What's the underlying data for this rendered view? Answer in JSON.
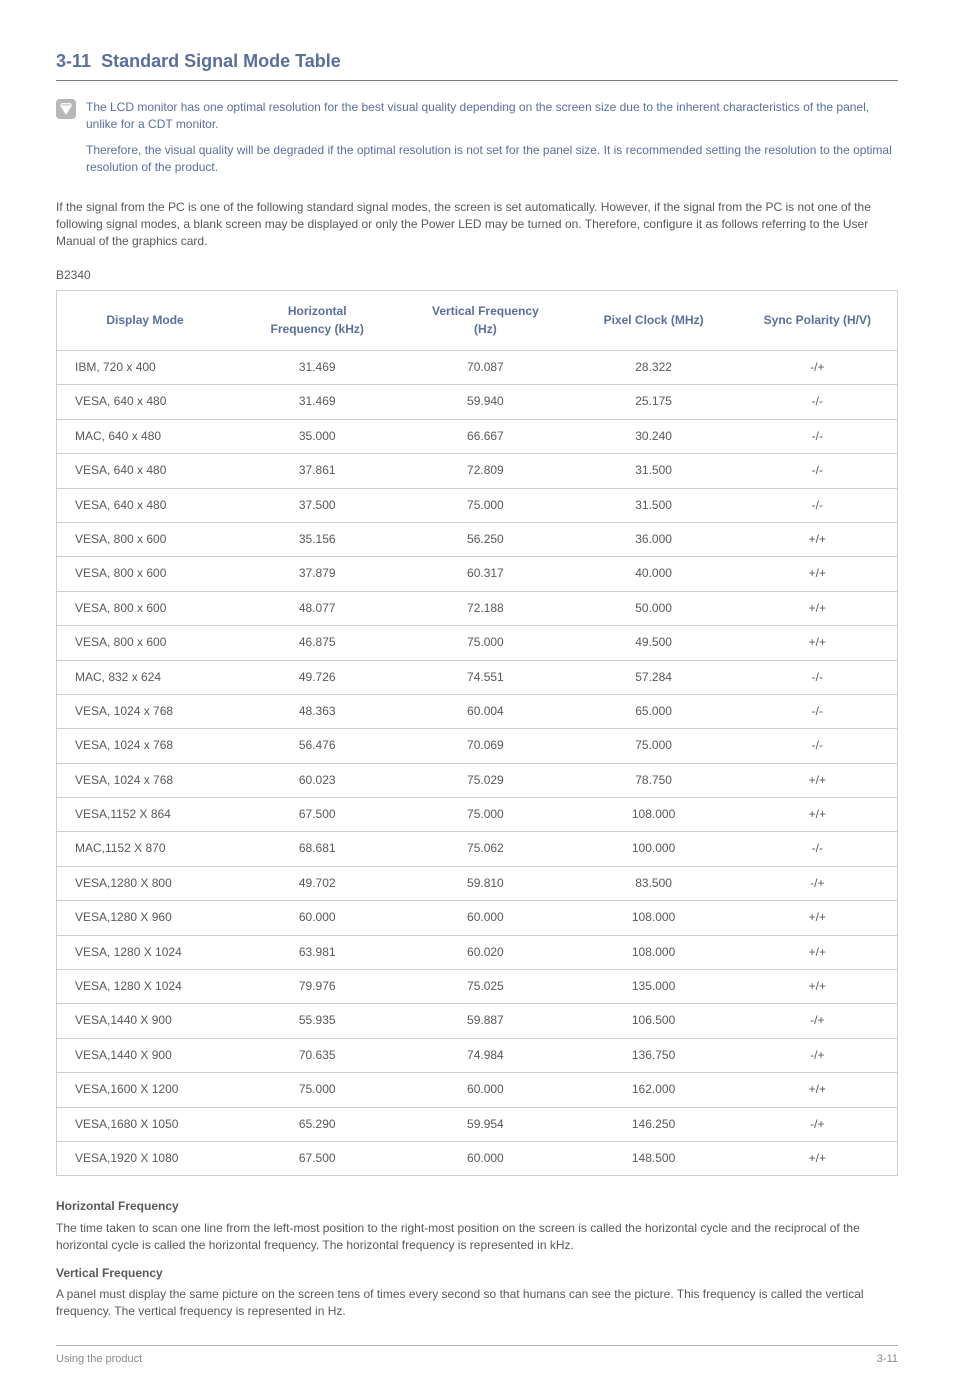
{
  "heading": {
    "number": "3-11",
    "title": "Standard Signal Mode Table"
  },
  "note": {
    "p1": "The LCD monitor has one optimal resolution for the best visual quality depending on the screen size due to the inherent characteristics of the panel, unlike for a CDT monitor.",
    "p2": "Therefore, the visual quality will be degraded if the optimal resolution is not set for the panel size. It is recommended setting the resolution to the optimal resolution of the product."
  },
  "intro": "If the signal from the PC is one of the following standard signal modes, the screen is set automatically. However, if the signal from the PC is not one of the following signal modes, a blank screen may be displayed or only the Power LED may be turned on. Therefore, configure it as follows referring to the User Manual of the graphics card.",
  "model": "B2340",
  "table": {
    "headers": {
      "c1": "Display Mode",
      "c2": "Horizontal Frequency (kHz)",
      "c3": "Vertical Frequency (Hz)",
      "c4": "Pixel Clock (MHz)",
      "c5": "Sync Polarity (H/V)"
    },
    "rows": [
      {
        "c1": "IBM, 720 x 400",
        "c2": "31.469",
        "c3": "70.087",
        "c4": "28.322",
        "c5": "-/+"
      },
      {
        "c1": "VESA, 640 x 480",
        "c2": "31.469",
        "c3": "59.940",
        "c4": "25.175",
        "c5": "-/-"
      },
      {
        "c1": "MAC, 640 x 480",
        "c2": "35.000",
        "c3": "66.667",
        "c4": "30.240",
        "c5": "-/-"
      },
      {
        "c1": "VESA, 640 x 480",
        "c2": "37.861",
        "c3": "72.809",
        "c4": "31.500",
        "c5": "-/-"
      },
      {
        "c1": "VESA, 640 x 480",
        "c2": "37.500",
        "c3": "75.000",
        "c4": "31.500",
        "c5": "-/-"
      },
      {
        "c1": "VESA, 800 x 600",
        "c2": "35.156",
        "c3": "56.250",
        "c4": "36.000",
        "c5": "+/+"
      },
      {
        "c1": "VESA, 800 x 600",
        "c2": "37.879",
        "c3": "60.317",
        "c4": "40.000",
        "c5": "+/+"
      },
      {
        "c1": "VESA, 800 x 600",
        "c2": "48.077",
        "c3": "72.188",
        "c4": "50.000",
        "c5": "+/+"
      },
      {
        "c1": "VESA, 800 x 600",
        "c2": "46.875",
        "c3": "75.000",
        "c4": "49.500",
        "c5": "+/+"
      },
      {
        "c1": "MAC, 832 x 624",
        "c2": "49.726",
        "c3": "74.551",
        "c4": "57.284",
        "c5": "-/-"
      },
      {
        "c1": "VESA, 1024 x 768",
        "c2": "48.363",
        "c3": "60.004",
        "c4": "65.000",
        "c5": "-/-"
      },
      {
        "c1": "VESA, 1024 x 768",
        "c2": "56.476",
        "c3": "70.069",
        "c4": "75.000",
        "c5": "-/-"
      },
      {
        "c1": "VESA, 1024 x 768",
        "c2": "60.023",
        "c3": "75.029",
        "c4": "78.750",
        "c5": "+/+"
      },
      {
        "c1": "VESA,1152 X 864",
        "c2": "67.500",
        "c3": "75.000",
        "c4": "108.000",
        "c5": "+/+"
      },
      {
        "c1": "MAC,1152 X 870",
        "c2": "68.681",
        "c3": "75.062",
        "c4": "100.000",
        "c5": "-/-"
      },
      {
        "c1": "VESA,1280 X 800",
        "c2": "49.702",
        "c3": "59.810",
        "c4": "83.500",
        "c5": "-/+"
      },
      {
        "c1": "VESA,1280 X 960",
        "c2": "60.000",
        "c3": "60.000",
        "c4": "108.000",
        "c5": "+/+"
      },
      {
        "c1": "VESA, 1280 X 1024",
        "c2": "63.981",
        "c3": "60.020",
        "c4": "108.000",
        "c5": "+/+"
      },
      {
        "c1": "VESA, 1280 X 1024",
        "c2": "79.976",
        "c3": "75.025",
        "c4": "135.000",
        "c5": "+/+"
      },
      {
        "c1": "VESA,1440 X 900",
        "c2": "55.935",
        "c3": "59.887",
        "c4": "106.500",
        "c5": "-/+"
      },
      {
        "c1": "VESA,1440 X 900",
        "c2": "70.635",
        "c3": "74.984",
        "c4": "136.750",
        "c5": "-/+"
      },
      {
        "c1": "VESA,1600 X 1200",
        "c2": "75.000",
        "c3": "60.000",
        "c4": "162.000",
        "c5": "+/+"
      },
      {
        "c1": "VESA,1680 X 1050",
        "c2": "65.290",
        "c3": "59.954",
        "c4": "146.250",
        "c5": "-/+"
      },
      {
        "c1": "VESA,1920 X 1080",
        "c2": "67.500",
        "c3": "60.000",
        "c4": "148.500",
        "c5": "+/+"
      }
    ]
  },
  "defs": {
    "h1": "Horizontal Frequency",
    "t1": "The time taken to scan one line from the left-most position to the right-most position on the screen is called the horizontal cycle and the reciprocal of the horizontal cycle is called the horizontal frequency. The horizontal frequency is represented in kHz.",
    "h2": "Vertical Frequency",
    "t2": "A panel must display the same picture on the screen tens of times every second so that humans can see the picture. This frequency is called the vertical frequency. The vertical frequency is represented in Hz."
  },
  "footer": {
    "left": "Using the product",
    "right": "3-11"
  }
}
